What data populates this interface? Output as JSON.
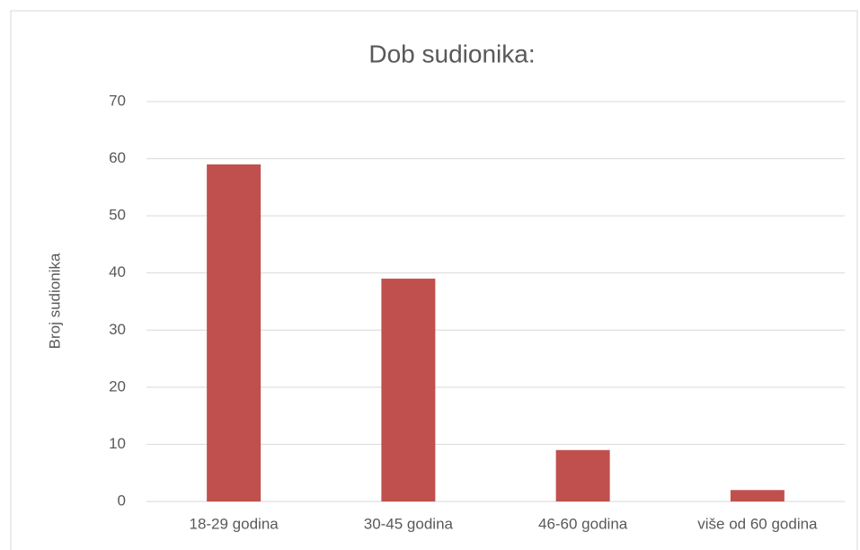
{
  "chart_data": {
    "type": "bar",
    "title": "Dob sudionika:",
    "y_label": "Broj sudionika",
    "categories": [
      "18-29 godina",
      "30-45 godina",
      "46-60 godina",
      "više od 60 godina"
    ],
    "values": [
      59,
      39,
      9,
      2
    ],
    "color": "#c0504d",
    "ylim": [
      0,
      70
    ],
    "yticks": [
      0,
      10,
      20,
      30,
      40,
      50,
      60,
      70
    ],
    "grid": true
  }
}
